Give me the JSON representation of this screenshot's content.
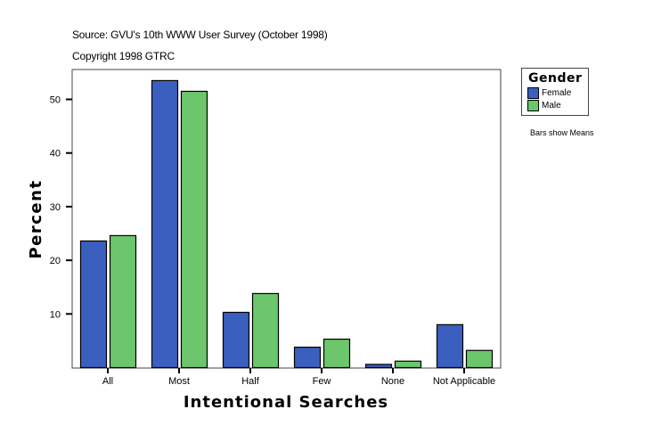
{
  "header": {
    "source": "Source: GVU's 10th WWW User Survey (October 1998)",
    "copyright": "Copyright 1998 GTRC"
  },
  "legend": {
    "title": "Gender",
    "items": [
      {
        "label": "Female",
        "color": "#3a5fbf"
      },
      {
        "label": "Male",
        "color": "#6cc66c"
      }
    ]
  },
  "note": "Bars show Means",
  "chart_data": {
    "type": "bar",
    "title": "",
    "xlabel": "Intentional Searches",
    "ylabel": "Percent",
    "categories": [
      "All",
      "Most",
      "Half",
      "Few",
      "None",
      "Not Applicable"
    ],
    "series": [
      {
        "name": "Female",
        "color": "#3a5fbf",
        "values": [
          23.6,
          53.5,
          10.3,
          3.8,
          0.6,
          8.0
        ]
      },
      {
        "name": "Male",
        "color": "#6cc66c",
        "values": [
          24.6,
          51.5,
          13.8,
          5.3,
          1.2,
          3.2
        ]
      }
    ],
    "yticks": [
      10,
      20,
      30,
      40,
      50
    ],
    "ylim": [
      0,
      55.3
    ],
    "grid": false,
    "legend_position": "right"
  }
}
